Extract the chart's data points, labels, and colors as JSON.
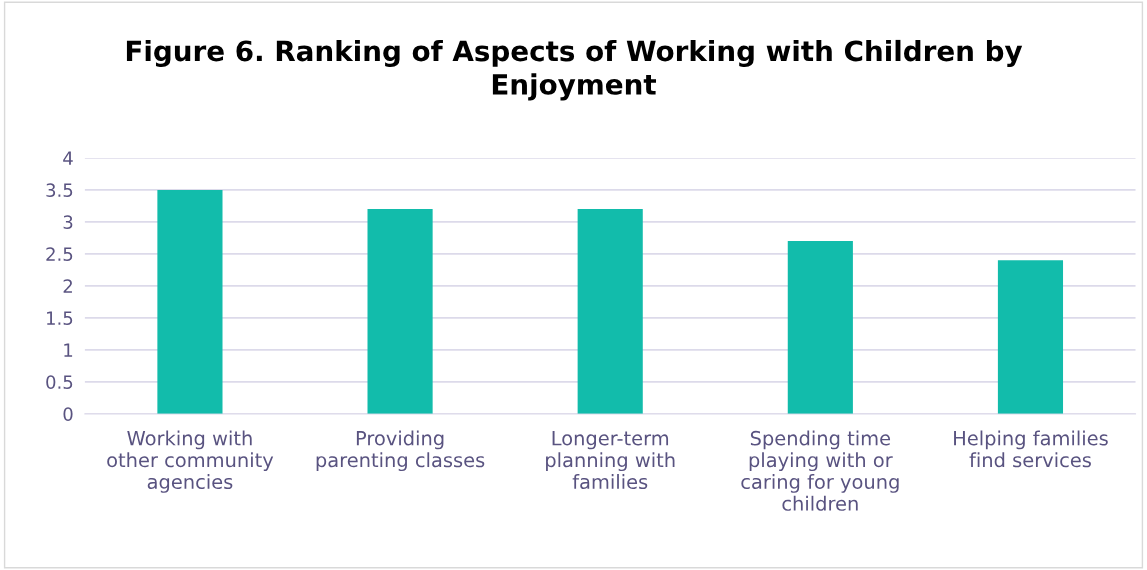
{
  "chart_data": {
    "type": "bar",
    "title": "Figure 6. Ranking of Aspects of Working with Children by\nEnjoyment",
    "categories": [
      "Working with\nother community\nagencies",
      "Providing\nparenting classes",
      "Longer-term\nplanning with\nfamilies",
      "Spending time\nplaying with or\ncaring for young\nchildren",
      "Helping families\nfind services"
    ],
    "values": [
      3.5,
      3.2,
      3.2,
      2.7,
      2.4
    ],
    "color": "#12bcab",
    "ylim": [
      0,
      4
    ],
    "yticks": [
      0,
      0.5,
      1,
      1.5,
      2,
      2.5,
      3,
      3.5,
      4
    ],
    "grid": "y",
    "legend": false
  }
}
